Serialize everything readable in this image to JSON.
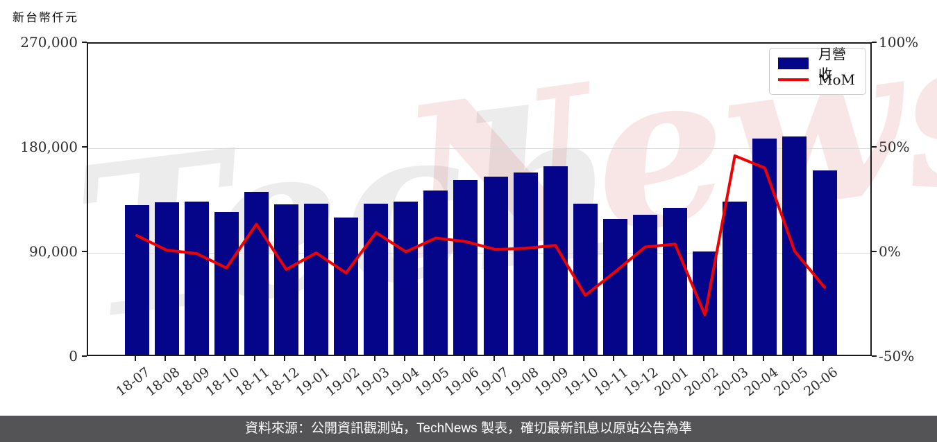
{
  "page": {
    "y_axis_title": "新台幣仟元",
    "caption": "資料來源：公開資訊觀測站，TechNews 製表，確切最新訊息以原站公告為準",
    "watermark": {
      "part1": "Tech",
      "part2": "News"
    }
  },
  "legend": {
    "items": [
      {
        "label": "月營收",
        "type": "bar",
        "color": "#05058a"
      },
      {
        "label": "MoM",
        "type": "line",
        "color": "#f00000"
      }
    ]
  },
  "colors": {
    "bar": "#05058a",
    "line": "#f00000",
    "grid": "#d9d9d9",
    "spine": "#1a1a1a",
    "caption_bg": "#545456"
  },
  "chart_data": {
    "type": "bar+line combo",
    "title": "",
    "categories": [
      "18-07",
      "18-08",
      "18-09",
      "18-10",
      "18-11",
      "18-12",
      "19-01",
      "19-02",
      "19-03",
      "19-04",
      "19-05",
      "19-06",
      "19-07",
      "19-08",
      "19-09",
      "19-10",
      "19-11",
      "19-12",
      "20-01",
      "20-02",
      "20-03",
      "20-04",
      "20-05",
      "20-06"
    ],
    "series": [
      {
        "name": "月營收",
        "type": "bar",
        "axis": "left",
        "unit": "新台幣仟元",
        "color": "#05058a",
        "values": [
          129000,
          131000,
          131500,
          122500,
          140000,
          129500,
          130000,
          118000,
          130000,
          131500,
          141000,
          150000,
          153000,
          156500,
          162000,
          130000,
          117000,
          120500,
          126500,
          89000,
          131500,
          186000,
          188000,
          158500
        ]
      },
      {
        "name": "MoM",
        "type": "line",
        "axis": "right",
        "unit": "%",
        "color": "#f00000",
        "values": [
          8.3,
          1.3,
          -0.3,
          -7.2,
          13.7,
          -7.9,
          0.0,
          -9.6,
          9.7,
          0.5,
          7.1,
          5.4,
          1.6,
          2.2,
          3.6,
          -20.3,
          -9.0,
          2.8,
          4.2,
          -29.7,
          46.4,
          40.6,
          0.8,
          -16.5
        ]
      }
    ],
    "left_axis": {
      "title": "新台幣仟元",
      "range": [
        0,
        270000
      ],
      "ticks": [
        {
          "value": 0,
          "label": "0"
        },
        {
          "value": 90000,
          "label": "90,000"
        },
        {
          "value": 180000,
          "label": "180,000"
        },
        {
          "value": 270000,
          "label": "270,000"
        }
      ]
    },
    "right_axis": {
      "range": [
        -50,
        100
      ],
      "ticks": [
        {
          "value": -50,
          "label": "-50%"
        },
        {
          "value": 0,
          "label": "0%"
        },
        {
          "value": 50,
          "label": "50%"
        },
        {
          "value": 100,
          "label": "100%"
        }
      ]
    },
    "grid": "horizontal gridlines at left-axis ticks",
    "legend_position": "top-right inside plot"
  }
}
